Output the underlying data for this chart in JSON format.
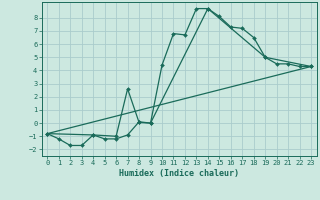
{
  "xlabel": "Humidex (Indice chaleur)",
  "bg_color": "#cce8e0",
  "grid_color": "#aacccc",
  "line_color": "#1a6b5a",
  "xlim": [
    -0.5,
    23.5
  ],
  "ylim": [
    -2.5,
    9.2
  ],
  "xticks": [
    0,
    1,
    2,
    3,
    4,
    5,
    6,
    7,
    8,
    9,
    10,
    11,
    12,
    13,
    14,
    15,
    16,
    17,
    18,
    19,
    20,
    21,
    22,
    23
  ],
  "yticks": [
    -2,
    -1,
    0,
    1,
    2,
    3,
    4,
    5,
    6,
    7,
    8
  ],
  "line1_x": [
    0,
    1,
    2,
    3,
    4,
    5,
    6,
    7,
    8,
    9,
    10,
    11,
    12,
    13,
    14,
    15,
    16,
    17,
    18,
    19,
    20,
    21,
    22,
    23
  ],
  "line1_y": [
    -0.8,
    -1.2,
    -1.7,
    -1.7,
    -0.9,
    -1.2,
    -1.2,
    -0.9,
    0.1,
    0.0,
    4.4,
    6.8,
    6.7,
    8.7,
    8.7,
    8.1,
    7.3,
    7.2,
    6.5,
    5.0,
    4.5,
    4.5,
    4.3,
    4.3
  ],
  "line2_x": [
    0,
    4,
    6,
    7,
    8,
    9,
    14,
    19,
    23
  ],
  "line2_y": [
    -0.8,
    -0.9,
    -1.0,
    2.6,
    0.05,
    0.0,
    8.7,
    5.0,
    4.3
  ],
  "line3_x": [
    0,
    23
  ],
  "line3_y": [
    -0.8,
    4.3
  ],
  "marker_size": 2.0,
  "line_width": 0.9,
  "tick_fontsize": 5.0,
  "xlabel_fontsize": 6.0
}
